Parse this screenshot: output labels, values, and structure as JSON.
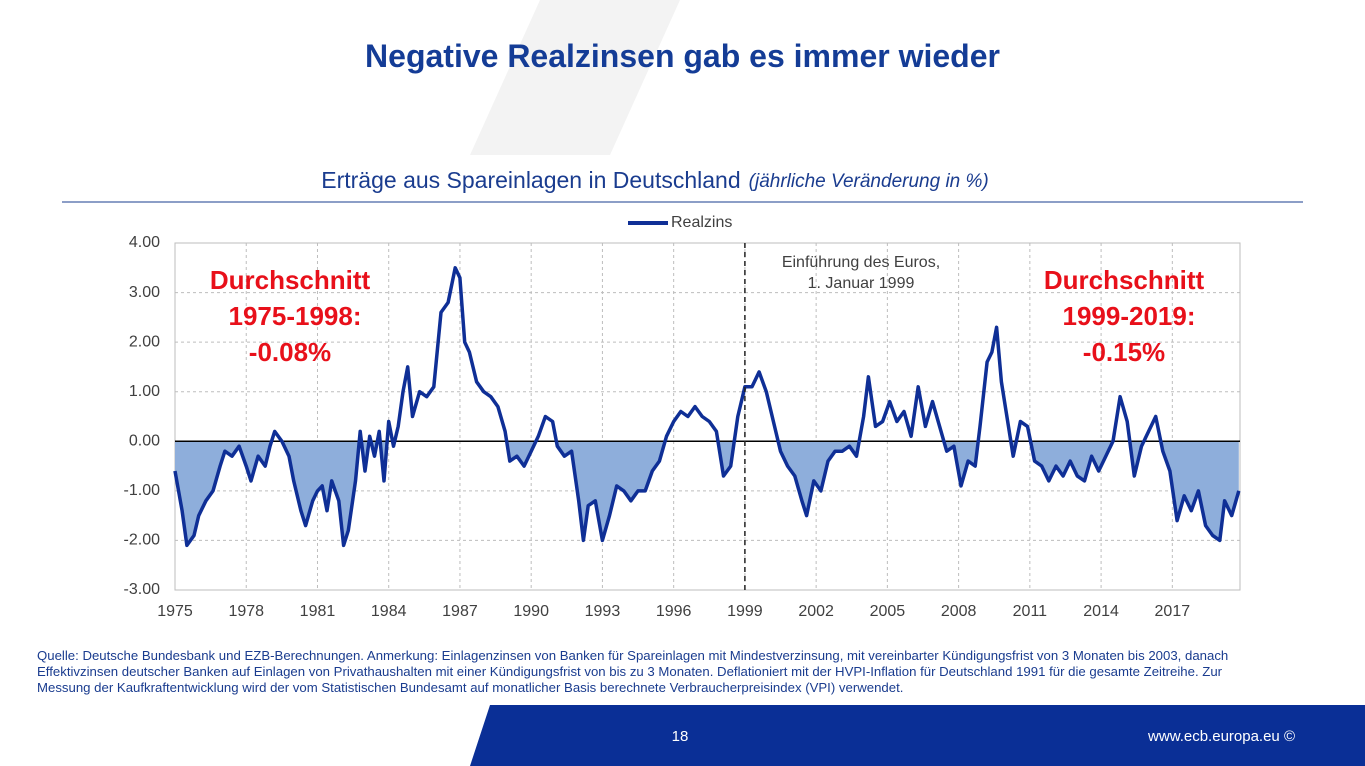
{
  "title": "Negative Realzinsen gab es immer wieder",
  "chart_data": {
    "type": "line",
    "subtitle": "Erträge aus Spareinlagen in Deutschland",
    "subtitle_note": "(jährliche Veränderung in %)",
    "x": [
      1975.0,
      1975.3,
      1975.5,
      1975.8,
      1976.0,
      1976.3,
      1976.6,
      1976.9,
      1977.1,
      1977.4,
      1977.7,
      1978.0,
      1978.2,
      1978.5,
      1978.8,
      1979.0,
      1979.2,
      1979.5,
      1979.8,
      1980.0,
      1980.3,
      1980.5,
      1980.8,
      1981.0,
      1981.2,
      1981.4,
      1981.6,
      1981.9,
      1982.1,
      1982.3,
      1982.6,
      1982.8,
      1983.0,
      1983.2,
      1983.4,
      1983.6,
      1983.8,
      1984.0,
      1984.2,
      1984.4,
      1984.6,
      1984.8,
      1985.0,
      1985.3,
      1985.6,
      1985.9,
      1986.2,
      1986.5,
      1986.8,
      1987.0,
      1987.2,
      1987.4,
      1987.7,
      1988.0,
      1988.3,
      1988.6,
      1988.9,
      1989.1,
      1989.4,
      1989.7,
      1990.0,
      1990.3,
      1990.6,
      1990.9,
      1991.1,
      1991.4,
      1991.7,
      1992.0,
      1992.2,
      1992.4,
      1992.7,
      1993.0,
      1993.3,
      1993.6,
      1993.9,
      1994.2,
      1994.5,
      1994.8,
      1995.1,
      1995.4,
      1995.7,
      1996.0,
      1996.3,
      1996.6,
      1996.9,
      1997.2,
      1997.5,
      1997.8,
      1998.1,
      1998.4,
      1998.7,
      1999.0,
      1999.3,
      1999.6,
      1999.9,
      2000.2,
      2000.5,
      2000.8,
      2001.1,
      2001.4,
      2001.6,
      2001.9,
      2002.2,
      2002.5,
      2002.8,
      2003.1,
      2003.4,
      2003.7,
      2004.0,
      2004.2,
      2004.5,
      2004.8,
      2005.1,
      2005.4,
      2005.7,
      2006.0,
      2006.3,
      2006.6,
      2006.9,
      2007.2,
      2007.5,
      2007.8,
      2008.1,
      2008.4,
      2008.7,
      2008.9,
      2009.2,
      2009.4,
      2009.6,
      2009.8,
      2010.0,
      2010.3,
      2010.6,
      2010.9,
      2011.2,
      2011.5,
      2011.8,
      2012.1,
      2012.4,
      2012.7,
      2013.0,
      2013.3,
      2013.6,
      2013.9,
      2014.2,
      2014.5,
      2014.8,
      2015.1,
      2015.4,
      2015.7,
      2016.0,
      2016.3,
      2016.6,
      2016.9,
      2017.2,
      2017.5,
      2017.8,
      2018.1,
      2018.4,
      2018.7,
      2019.0,
      2019.2,
      2019.5,
      2019.8
    ],
    "series": [
      {
        "name": "Realzins",
        "color": "#0f2f96",
        "fill": "#8eaedb",
        "values": [
          -0.6,
          -1.4,
          -2.1,
          -1.9,
          -1.5,
          -1.2,
          -1.0,
          -0.5,
          -0.2,
          -0.3,
          -0.1,
          -0.5,
          -0.8,
          -0.3,
          -0.5,
          -0.1,
          0.2,
          0.0,
          -0.3,
          -0.8,
          -1.4,
          -1.7,
          -1.2,
          -1.0,
          -0.9,
          -1.4,
          -0.8,
          -1.2,
          -2.1,
          -1.8,
          -0.8,
          0.2,
          -0.6,
          0.1,
          -0.3,
          0.2,
          -0.8,
          0.4,
          -0.1,
          0.3,
          1.0,
          1.5,
          0.5,
          1.0,
          0.9,
          1.1,
          2.6,
          2.8,
          3.5,
          3.3,
          2.0,
          1.8,
          1.2,
          1.0,
          0.9,
          0.7,
          0.2,
          -0.4,
          -0.3,
          -0.5,
          -0.2,
          0.1,
          0.5,
          0.4,
          -0.1,
          -0.3,
          -0.2,
          -1.2,
          -2.0,
          -1.3,
          -1.2,
          -2.0,
          -1.5,
          -0.9,
          -1.0,
          -1.2,
          -1.0,
          -1.0,
          -0.6,
          -0.4,
          0.1,
          0.4,
          0.6,
          0.5,
          0.7,
          0.5,
          0.4,
          0.2,
          -0.7,
          -0.5,
          0.5,
          1.1,
          1.1,
          1.4,
          1.0,
          0.4,
          -0.2,
          -0.5,
          -0.7,
          -1.2,
          -1.5,
          -0.8,
          -1.0,
          -0.4,
          -0.2,
          -0.2,
          -0.1,
          -0.3,
          0.5,
          1.3,
          0.3,
          0.4,
          0.8,
          0.4,
          0.6,
          0.1,
          1.1,
          0.3,
          0.8,
          0.3,
          -0.2,
          -0.1,
          -0.9,
          -0.4,
          -0.5,
          0.3,
          1.6,
          1.8,
          2.3,
          1.2,
          0.6,
          -0.3,
          0.4,
          0.3,
          -0.4,
          -0.5,
          -0.8,
          -0.5,
          -0.7,
          -0.4,
          -0.7,
          -0.8,
          -0.3,
          -0.6,
          -0.3,
          0.0,
          0.9,
          0.4,
          -0.7,
          -0.1,
          0.2,
          0.5,
          -0.2,
          -0.6,
          -1.6,
          -1.1,
          -1.4,
          -1.0,
          -1.7,
          -1.9,
          -2.0,
          -1.2,
          -1.5,
          -1.0
        ]
      }
    ],
    "xlim": [
      1975,
      2019.85
    ],
    "xticks": [
      1975,
      1978,
      1981,
      1984,
      1987,
      1990,
      1993,
      1996,
      1999,
      2002,
      2005,
      2008,
      2011,
      2014,
      2017
    ],
    "ylim": [
      -3,
      4
    ],
    "yticks": [
      {
        "value": -3,
        "label": "-3.00"
      },
      {
        "value": -2,
        "label": "-2.00"
      },
      {
        "value": -1,
        "label": "-1.00"
      },
      {
        "value": 0,
        "label": "0.00"
      },
      {
        "value": 1,
        "label": "1.00"
      },
      {
        "value": 2,
        "label": "2.00"
      },
      {
        "value": 3,
        "label": "3.00"
      },
      {
        "value": 4,
        "label": "4.00"
      }
    ],
    "grid": true,
    "legend": "top",
    "vline": 1999,
    "vline_label": [
      "Einführung des Euros,",
      "1. Januar 1999"
    ],
    "annotations": [
      [
        "Durchschnitt",
        "1975-1998:",
        "-0.08%"
      ],
      [
        "Durchschnitt",
        "1999-2019:",
        "-0.15%"
      ]
    ],
    "annotation_color": "#e8101a"
  },
  "note": "Quelle: Deutsche Bundesbank und EZB-Berechnungen. Anmerkung: Einlagenzinsen von Banken für Spareinlagen mit Mindestverzinsung, mit vereinbarter Kündigungsfrist von 3 Monaten bis 2003, danach Effektivzinsen deutscher Banken auf Einlagen von Privathaushalten mit einer Kündigungsfrist von bis zu 3 Monaten. Deflationiert mit der HVPI-Inflation für Deutschland 1991 für die gesamte Zeitreihe. Zur Messung der Kaufkraftentwicklung wird der vom Statistischen Bundesamt auf monatlicher Basis berechnete Verbraucherpreisindex (VPI) verwendet.",
  "footer": {
    "page": "18",
    "url": "www.ecb.europa.eu ©"
  }
}
